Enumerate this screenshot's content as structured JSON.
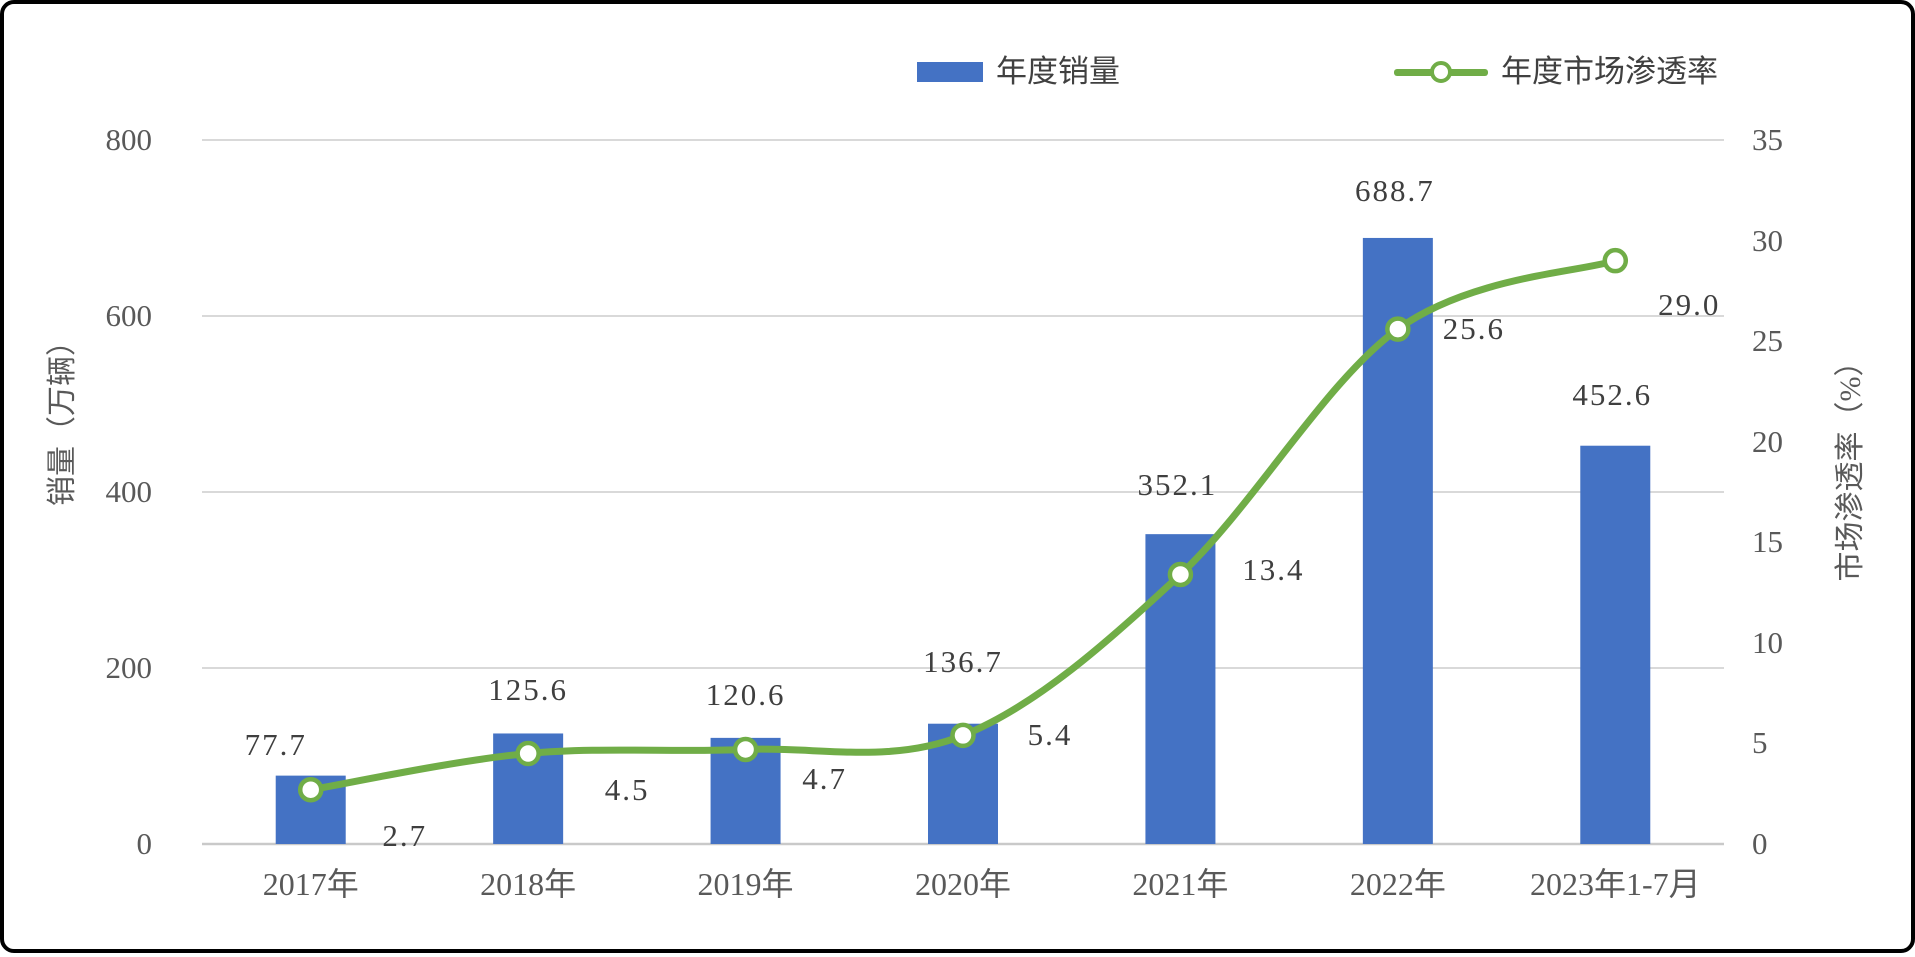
{
  "chart_data": {
    "type": "combo_bar_line",
    "title": "",
    "categories": [
      "2017年",
      "2018年",
      "2019年",
      "2020年",
      "2021年",
      "2022年",
      "2023年1-7月"
    ],
    "series": [
      {
        "name": "年度销量",
        "type": "bar",
        "axis": "left",
        "color": "#4472C4",
        "values": [
          77.7,
          125.6,
          120.6,
          136.7,
          352.1,
          688.7,
          452.6
        ],
        "labels": [
          "77.7",
          "125.6",
          "120.6",
          "136.7",
          "352.1",
          "688.7",
          "452.6"
        ]
      },
      {
        "name": "年度市场渗透率",
        "type": "line",
        "axis": "right",
        "color": "#70AD47",
        "marker": "circle-white-fill",
        "values": [
          2.7,
          4.5,
          4.7,
          5.4,
          13.4,
          25.6,
          29.0
        ],
        "labels": [
          "2.7",
          "4.5",
          "4.7",
          "5.4",
          "13.4",
          "25.6",
          "29.0"
        ]
      }
    ],
    "left_axis": {
      "title": "销量（万辆）",
      "min": 0,
      "max": 800,
      "step": 200,
      "tick_labels": [
        "0",
        "200",
        "400",
        "600",
        "800"
      ]
    },
    "right_axis": {
      "title": "市场渗透率（%）",
      "min": 0,
      "max": 35,
      "step": 5,
      "tick_labels": [
        "0",
        "5",
        "10",
        "15",
        "20",
        "25",
        "30",
        "35"
      ]
    },
    "legend": {
      "position": "top",
      "items": [
        "年度销量",
        "年度市场渗透率"
      ]
    },
    "grid": true,
    "colors": {
      "bar": "#4472C4",
      "line": "#70AD47",
      "marker_fill": "#FFFFFF",
      "gridline": "#D9D9D9",
      "baseline": "#C9C9C9",
      "axis_text": "#595959",
      "value_text": "#3F3F3F",
      "background": "#FFFFFF",
      "frame_border": "#000000"
    }
  }
}
